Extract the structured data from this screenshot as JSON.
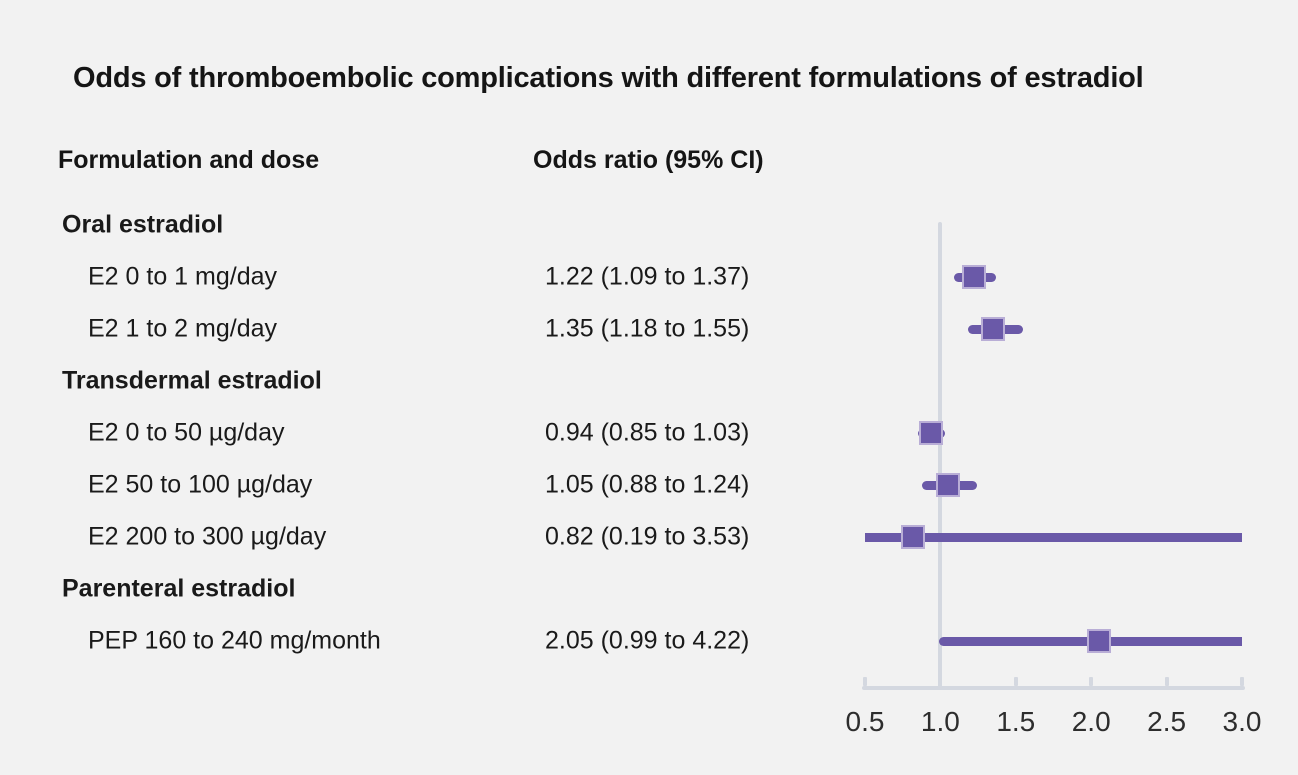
{
  "title": "Odds of thromboembolic complications with different formulations of estradiol",
  "columns": {
    "formulation": "Formulation and dose",
    "odds_ratio": "Odds ratio (95% CI)"
  },
  "colors": {
    "background": "#f2f2f2",
    "text": "#1a1a1a",
    "marker_purple": "#6a59a8",
    "marker_outline": "#b9aed6",
    "axis_gray": "#d4d8e0"
  },
  "chart_data": {
    "type": "forest",
    "title": "Odds of thromboembolic complications with different formulations of estradiol",
    "xlabel": "Odds ratio",
    "axis": {
      "min": 0.5,
      "max": 3.0,
      "ticks": [
        "0.5",
        "1.0",
        "1.5",
        "2.0",
        "2.5",
        "3.0"
      ],
      "tick_values": [
        0.5,
        1.0,
        1.5,
        2.0,
        2.5,
        3.0
      ],
      "reference_line": 1.0
    },
    "groups": [
      {
        "label": "Oral estradiol",
        "items": [
          {
            "label": "E2 0 to 1 mg/day",
            "or_text": "1.22 (1.09 to 1.37)",
            "or": 1.22,
            "ci_low": 1.09,
            "ci_high": 1.37
          },
          {
            "label": "E2 1 to 2 mg/day",
            "or_text": "1.35 (1.18 to 1.55)",
            "or": 1.35,
            "ci_low": 1.18,
            "ci_high": 1.55
          }
        ]
      },
      {
        "label": "Transdermal estradiol",
        "items": [
          {
            "label": "E2 0 to 50 µg/day",
            "or_text": "0.94 (0.85 to 1.03)",
            "or": 0.94,
            "ci_low": 0.85,
            "ci_high": 1.03
          },
          {
            "label": "E2 50 to 100 µg/day",
            "or_text": "1.05 (0.88 to 1.24)",
            "or": 1.05,
            "ci_low": 0.88,
            "ci_high": 1.24
          },
          {
            "label": "E2 200 to 300 µg/day",
            "or_text": "0.82 (0.19 to 3.53)",
            "or": 0.82,
            "ci_low": 0.19,
            "ci_high": 3.53
          }
        ]
      },
      {
        "label": "Parenteral estradiol",
        "items": [
          {
            "label": "PEP 160 to 240 mg/month",
            "or_text": "2.05 (0.99 to 4.22)",
            "or": 2.05,
            "ci_low": 0.99,
            "ci_high": 4.22
          }
        ]
      }
    ]
  }
}
